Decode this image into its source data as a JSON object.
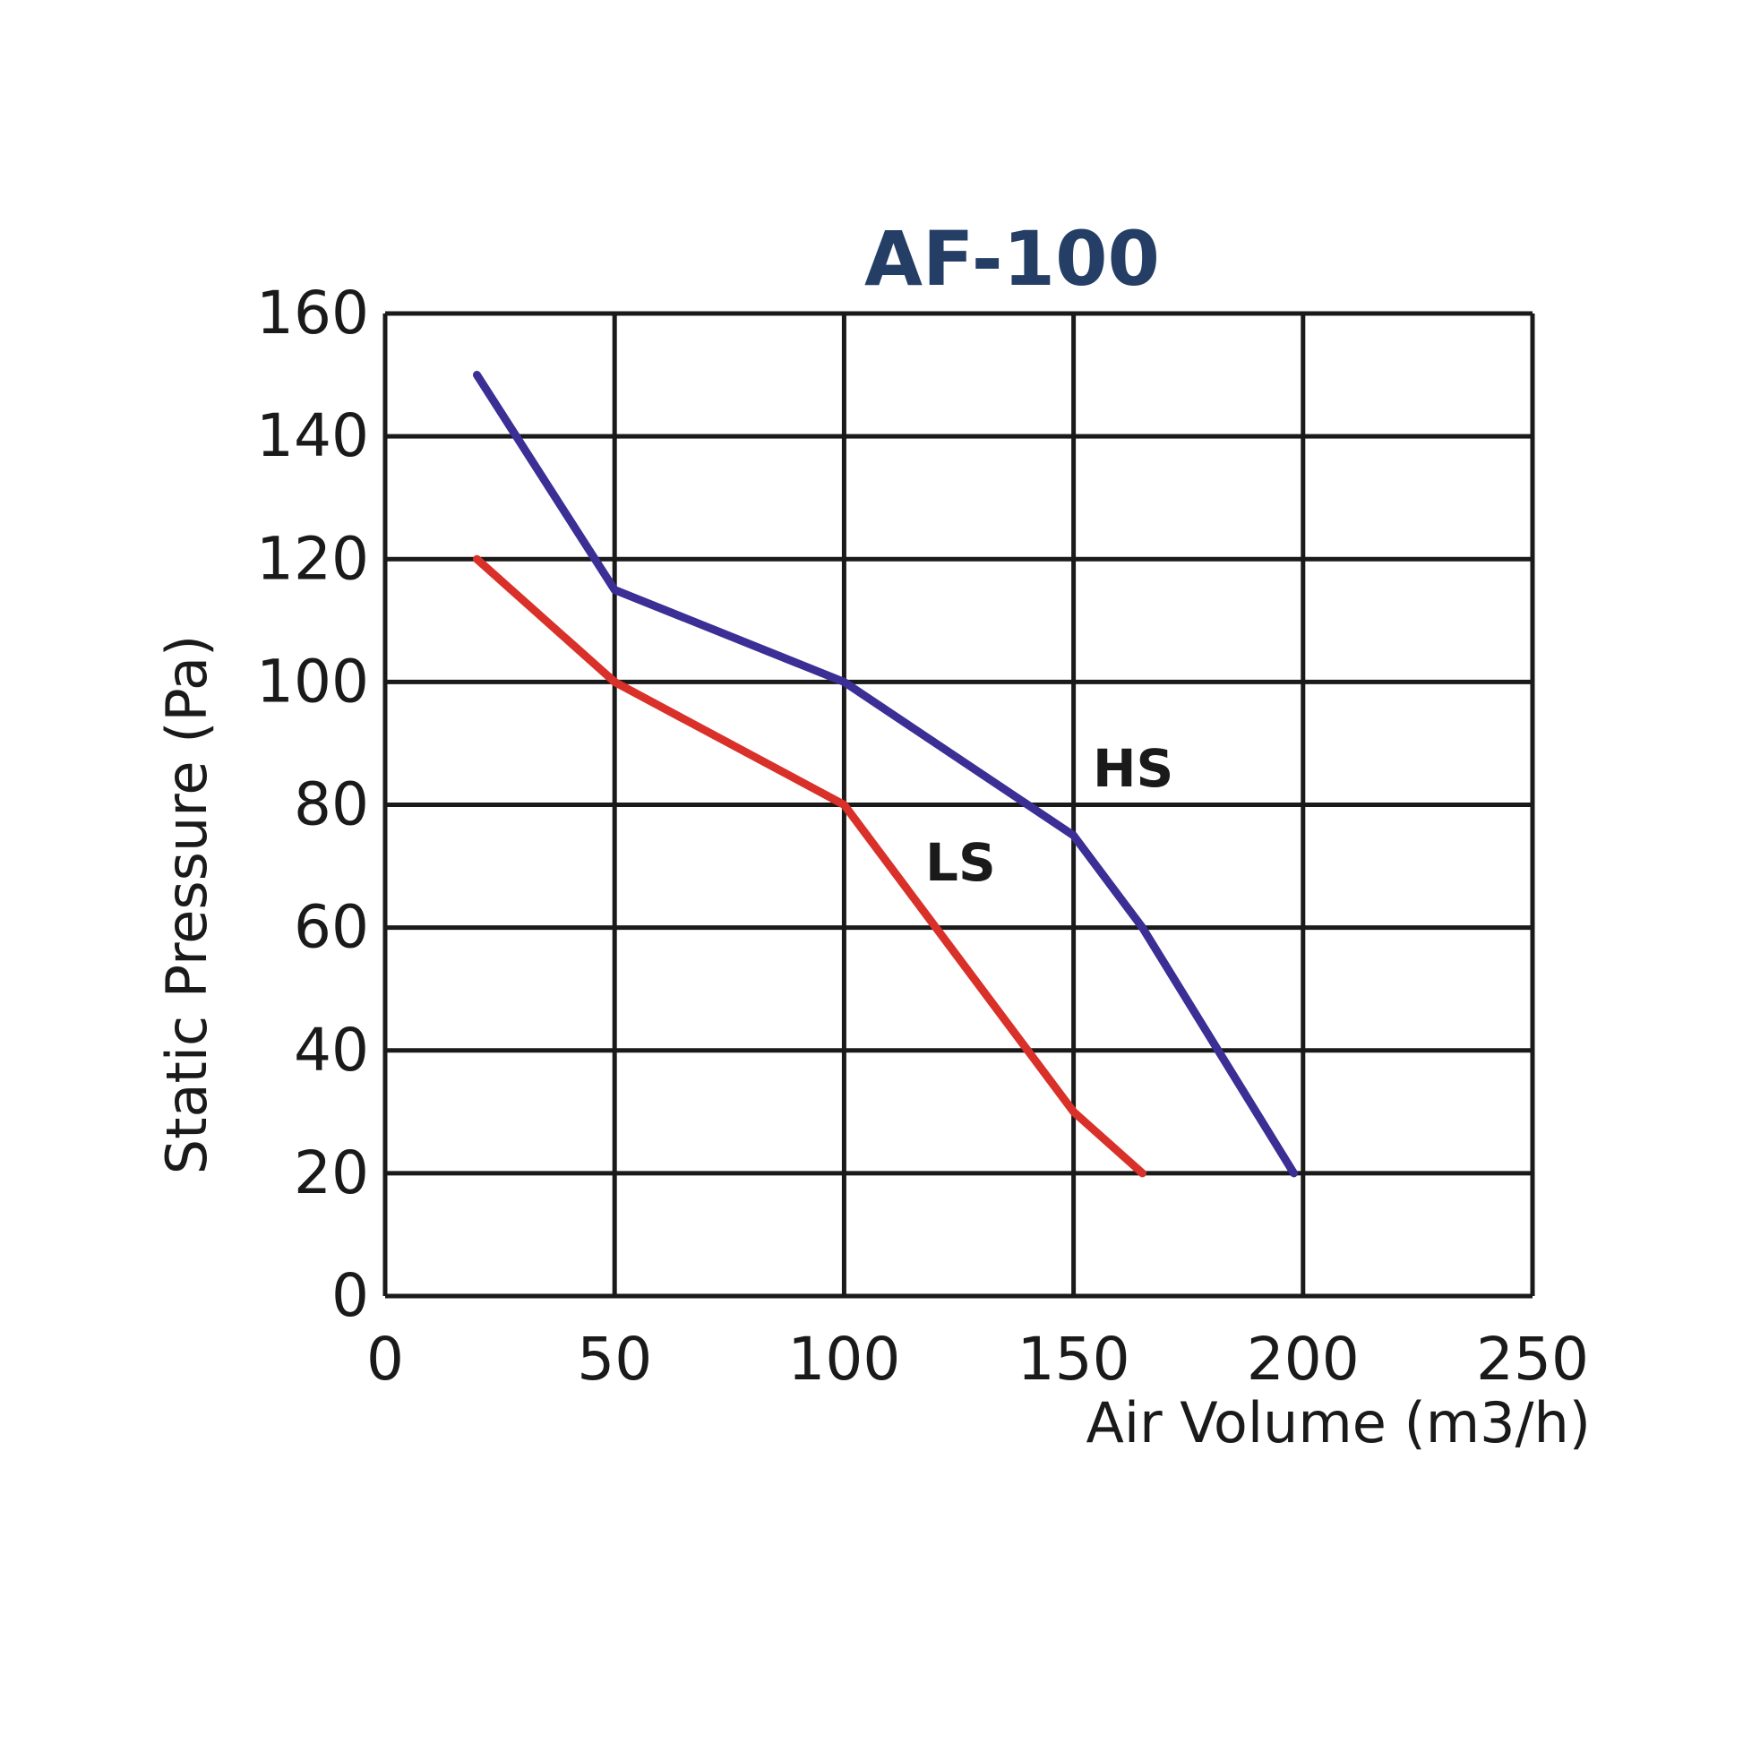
{
  "chart_data": {
    "type": "line",
    "title": "AF-100",
    "xlabel": "Air Volume (m3/h)",
    "ylabel": "Static Pressure (Pa)",
    "xlim": [
      0,
      250
    ],
    "ylim": [
      0,
      160
    ],
    "x_ticks": [
      0,
      50,
      100,
      150,
      200,
      250
    ],
    "y_ticks": [
      0,
      20,
      40,
      60,
      80,
      100,
      120,
      140,
      160
    ],
    "grid": true,
    "title_color": "#243e66",
    "series": [
      {
        "name": "HS",
        "color": "#3b2f96",
        "points": [
          [
            20,
            150
          ],
          [
            50,
            115
          ],
          [
            100,
            100
          ],
          [
            150,
            75
          ],
          [
            165,
            60
          ],
          [
            198,
            20
          ]
        ]
      },
      {
        "name": "LS",
        "color": "#d9302a",
        "points": [
          [
            20,
            120
          ],
          [
            50,
            100
          ],
          [
            100,
            80
          ],
          [
            150,
            30
          ],
          [
            165,
            20
          ]
        ]
      }
    ]
  }
}
